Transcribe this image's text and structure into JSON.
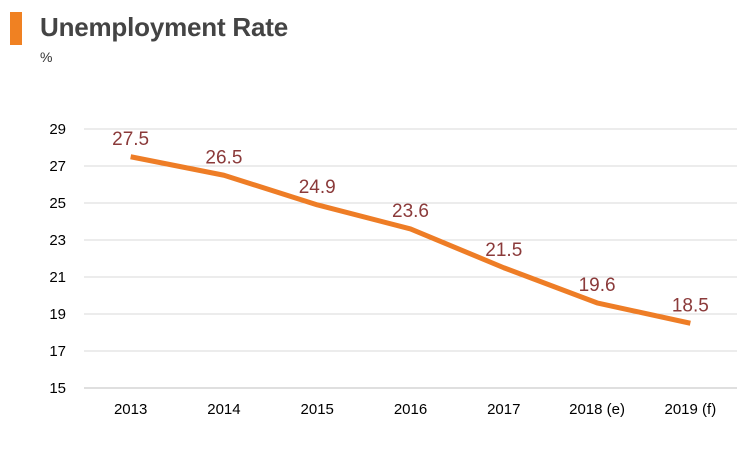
{
  "header": {
    "title": "Unemployment Rate",
    "unit": "%"
  },
  "colors": {
    "accent": "#f08122",
    "line": "#ee7d26",
    "data_label": "#8b3a3a",
    "grid": "#d9d9d9"
  },
  "chart_data": {
    "type": "line",
    "title": "Unemployment Rate",
    "subtitle": "%",
    "categories": [
      "2013",
      "2014",
      "2015",
      "2016",
      "2017",
      "2018 (e)",
      "2019 (f)"
    ],
    "series": [
      {
        "values": [
          27.5,
          26.5,
          24.9,
          23.6,
          21.5,
          19.6,
          18.5
        ]
      }
    ],
    "data_labels": [
      "27.5",
      "26.5",
      "24.9",
      "23.6",
      "21.5",
      "19.6",
      "18.5"
    ],
    "y_ticks": [
      "15",
      "17",
      "19",
      "21",
      "23",
      "25",
      "27",
      "29"
    ],
    "ylim": [
      15,
      29
    ],
    "grid": true,
    "legend": "none"
  }
}
